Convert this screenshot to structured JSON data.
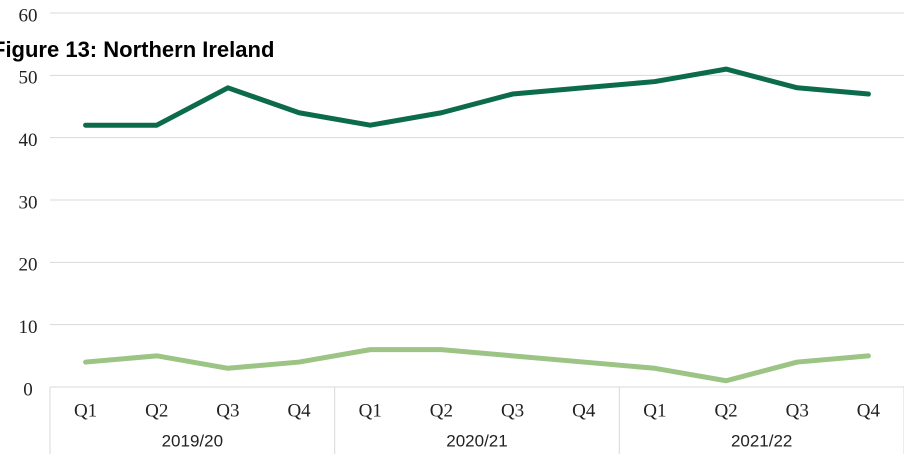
{
  "chart_data": {
    "type": "line",
    "title": "Figure 13: Northern Ireland",
    "categories": [
      "Q1",
      "Q2",
      "Q3",
      "Q4",
      "Q1",
      "Q2",
      "Q3",
      "Q4",
      "Q1",
      "Q2",
      "Q3",
      "Q4"
    ],
    "groups": [
      "2019/20",
      "2020/21",
      "2021/22"
    ],
    "series": [
      {
        "color": "#0d6b4d",
        "values": [
          42,
          42,
          48,
          44,
          42,
          44,
          47,
          48,
          49,
          51,
          48,
          47
        ]
      },
      {
        "color": "#9cc485",
        "values": [
          4,
          5,
          3,
          4,
          6,
          6,
          5,
          4,
          3,
          1,
          4,
          5
        ]
      }
    ],
    "ylim": [
      0,
      60
    ],
    "yticks": [
      0,
      10,
      20,
      30,
      40,
      50,
      60
    ],
    "grid": true
  }
}
